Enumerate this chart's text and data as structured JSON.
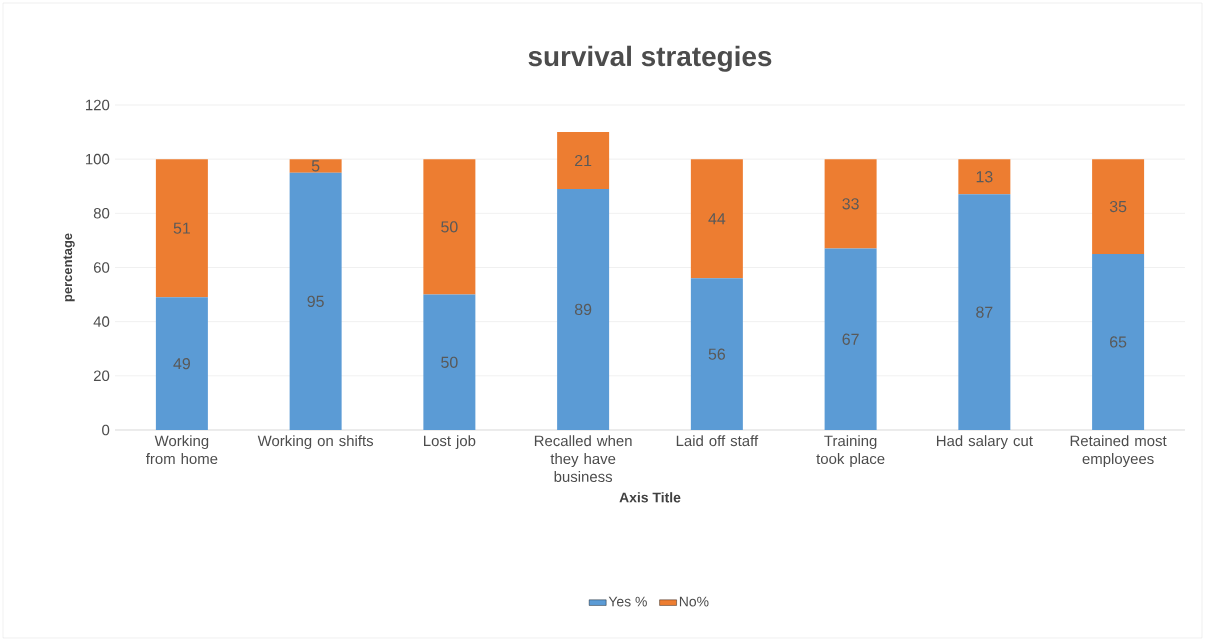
{
  "chart_data": {
    "type": "bar",
    "stacked": true,
    "title": "survival strategies",
    "xlabel": "Axis Title",
    "ylabel": "percentage",
    "categories": [
      "Working from home",
      "Working on shifts",
      "Lost job",
      "Recalled when they have business",
      "Laid off staff",
      "Training took place",
      "Had salary cut",
      "Retained most employees"
    ],
    "series": [
      {
        "name": "Yes %",
        "color": "#5b9bd5",
        "values": [
          49,
          95,
          50,
          89,
          56,
          67,
          87,
          65
        ]
      },
      {
        "name": "No%",
        "color": "#ed7d31",
        "values": [
          51,
          5,
          50,
          21,
          44,
          33,
          13,
          35
        ]
      }
    ],
    "ylim": [
      0,
      120
    ],
    "yticks": [
      0,
      20,
      40,
      60,
      80,
      100,
      120
    ],
    "grid": "y",
    "legend": "bottom",
    "data_labels": true
  }
}
